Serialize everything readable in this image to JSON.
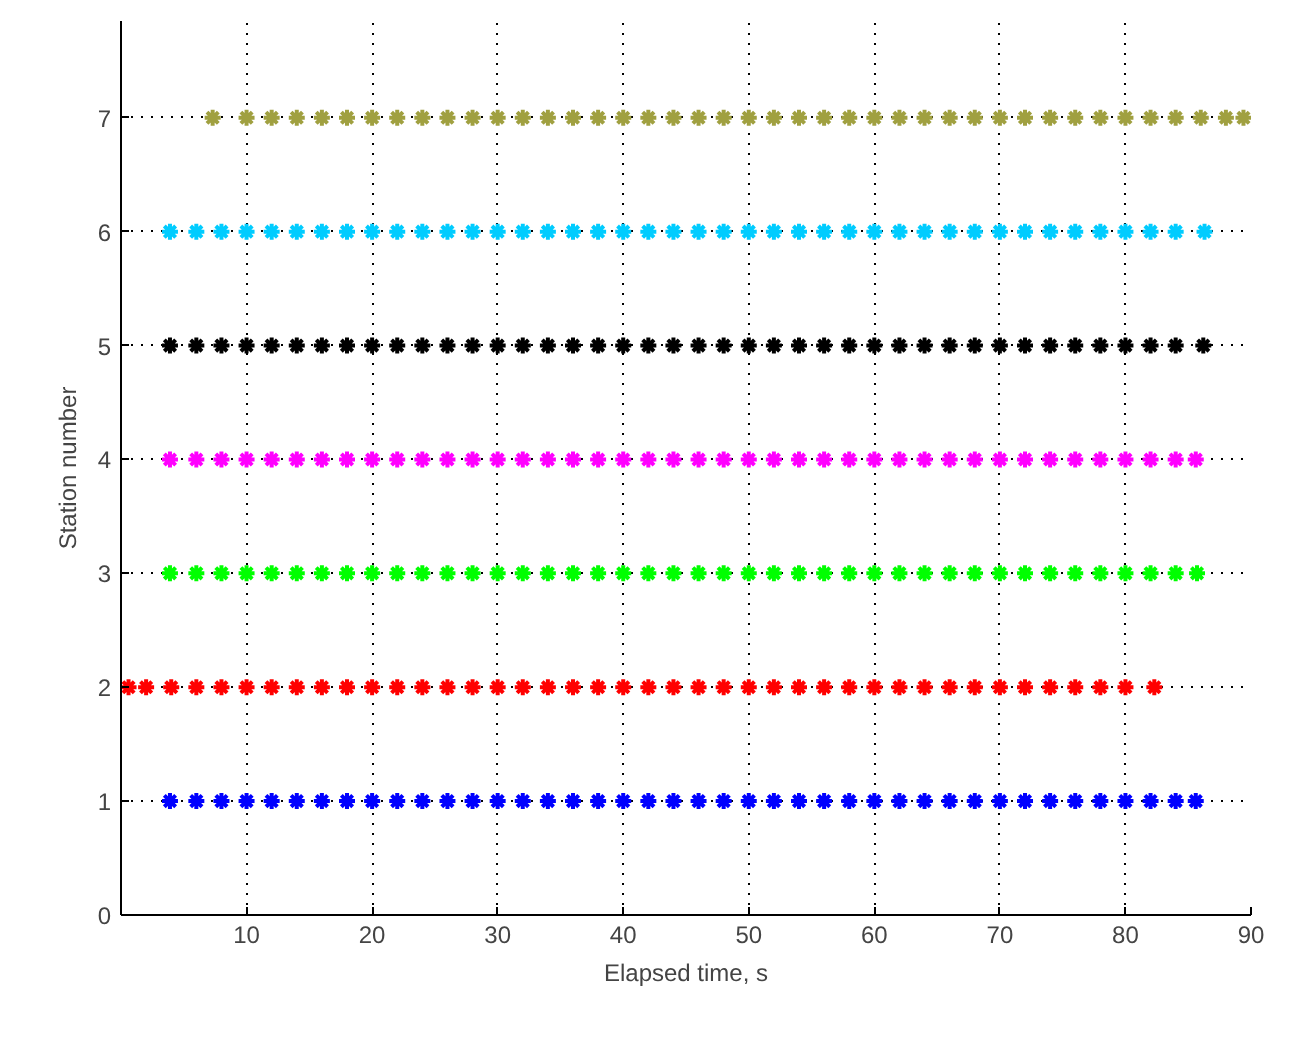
{
  "chart_data": {
    "type": "scatter",
    "xlabel": "Elapsed time, s",
    "ylabel": "Station number",
    "xlim": [
      0,
      90
    ],
    "ylim": [
      0,
      7.85
    ],
    "xticks": [
      10,
      20,
      30,
      40,
      50,
      60,
      70,
      80,
      90
    ],
    "yticks": [
      0,
      1,
      2,
      3,
      4,
      5,
      6,
      7
    ],
    "grid": true,
    "marker": "cross",
    "series": [
      {
        "color": "#0000ff",
        "x": [
          3.9,
          6,
          8,
          10,
          12,
          14,
          16,
          18,
          20,
          22,
          24,
          26,
          28,
          30,
          32,
          34,
          36,
          38,
          40,
          42,
          44,
          46,
          48,
          50,
          52,
          54,
          56,
          58,
          60,
          62,
          64,
          66,
          68,
          70,
          72,
          74,
          76,
          78,
          80,
          82,
          84,
          85.6
        ],
        "values": [
          1,
          1,
          1,
          1,
          1,
          1,
          1,
          1,
          1,
          1,
          1,
          1,
          1,
          1,
          1,
          1,
          1,
          1,
          1,
          1,
          1,
          1,
          1,
          1,
          1,
          1,
          1,
          1,
          1,
          1,
          1,
          1,
          1,
          1,
          1,
          1,
          1,
          1,
          1,
          1,
          1,
          1
        ]
      },
      {
        "color": "#ff0000",
        "x": [
          0.6,
          2,
          4,
          6,
          8,
          10,
          12,
          14,
          16,
          18,
          20,
          22,
          24,
          26,
          28,
          30,
          32,
          34,
          36,
          38,
          40,
          42,
          44,
          46,
          48,
          50,
          52,
          54,
          56,
          58,
          60,
          62,
          64,
          66,
          68,
          70,
          72,
          74,
          76,
          78,
          80,
          82.3
        ],
        "values": [
          2,
          2,
          2,
          2,
          2,
          2,
          2,
          2,
          2,
          2,
          2,
          2,
          2,
          2,
          2,
          2,
          2,
          2,
          2,
          2,
          2,
          2,
          2,
          2,
          2,
          2,
          2,
          2,
          2,
          2,
          2,
          2,
          2,
          2,
          2,
          2,
          2,
          2,
          2,
          2,
          2,
          2
        ]
      },
      {
        "color": "#00ff00",
        "x": [
          3.9,
          6,
          8,
          10,
          12,
          14,
          16,
          18,
          20,
          22,
          24,
          26,
          28,
          30,
          32,
          34,
          36,
          38,
          40,
          42,
          44,
          46,
          48,
          50,
          52,
          54,
          56,
          58,
          60,
          62,
          64,
          66,
          68,
          70,
          72,
          74,
          76,
          78,
          80,
          82,
          84,
          85.7
        ],
        "values": [
          3,
          3,
          3,
          3,
          3,
          3,
          3,
          3,
          3,
          3,
          3,
          3,
          3,
          3,
          3,
          3,
          3,
          3,
          3,
          3,
          3,
          3,
          3,
          3,
          3,
          3,
          3,
          3,
          3,
          3,
          3,
          3,
          3,
          3,
          3,
          3,
          3,
          3,
          3,
          3,
          3,
          3
        ]
      },
      {
        "color": "#ff00ff",
        "x": [
          3.9,
          6,
          8,
          10,
          12,
          14,
          16,
          18,
          20,
          22,
          24,
          26,
          28,
          30,
          32,
          34,
          36,
          38,
          40,
          42,
          44,
          46,
          48,
          50,
          52,
          54,
          56,
          58,
          60,
          62,
          64,
          66,
          68,
          70,
          72,
          74,
          76,
          78,
          80,
          82,
          84,
          85.6
        ],
        "values": [
          4,
          4,
          4,
          4,
          4,
          4,
          4,
          4,
          4,
          4,
          4,
          4,
          4,
          4,
          4,
          4,
          4,
          4,
          4,
          4,
          4,
          4,
          4,
          4,
          4,
          4,
          4,
          4,
          4,
          4,
          4,
          4,
          4,
          4,
          4,
          4,
          4,
          4,
          4,
          4,
          4,
          4
        ]
      },
      {
        "color": "#000000",
        "x": [
          3.9,
          6,
          8,
          10,
          12,
          14,
          16,
          18,
          20,
          22,
          24,
          26,
          28,
          30,
          32,
          34,
          36,
          38,
          40,
          42,
          44,
          46,
          48,
          50,
          52,
          54,
          56,
          58,
          60,
          62,
          64,
          66,
          68,
          70,
          72,
          74,
          76,
          78,
          80,
          82,
          84,
          86.2
        ],
        "values": [
          5,
          5,
          5,
          5,
          5,
          5,
          5,
          5,
          5,
          5,
          5,
          5,
          5,
          5,
          5,
          5,
          5,
          5,
          5,
          5,
          5,
          5,
          5,
          5,
          5,
          5,
          5,
          5,
          5,
          5,
          5,
          5,
          5,
          5,
          5,
          5,
          5,
          5,
          5,
          5,
          5,
          5
        ]
      },
      {
        "color": "#00ccff",
        "x": [
          3.9,
          6,
          8,
          10,
          12,
          14,
          16,
          18,
          20,
          22,
          24,
          26,
          28,
          30,
          32,
          34,
          36,
          38,
          40,
          42,
          44,
          46,
          48,
          50,
          52,
          54,
          56,
          58,
          60,
          62,
          64,
          66,
          68,
          70,
          72,
          74,
          76,
          78,
          80,
          82,
          84,
          86.3
        ],
        "values": [
          6,
          6,
          6,
          6,
          6,
          6,
          6,
          6,
          6,
          6,
          6,
          6,
          6,
          6,
          6,
          6,
          6,
          6,
          6,
          6,
          6,
          6,
          6,
          6,
          6,
          6,
          6,
          6,
          6,
          6,
          6,
          6,
          6,
          6,
          6,
          6,
          6,
          6,
          6,
          6,
          6,
          6
        ]
      },
      {
        "color": "#a0a040",
        "x": [
          7.3,
          10,
          12,
          14,
          16,
          18,
          20,
          22,
          24,
          26,
          28,
          30,
          32,
          34,
          36,
          38,
          40,
          42,
          44,
          46,
          48,
          50,
          52,
          54,
          56,
          58,
          60,
          62,
          64,
          66,
          68,
          70,
          72,
          74,
          76,
          78,
          80,
          82,
          84,
          86,
          88,
          89.4
        ],
        "values": [
          7,
          7,
          7,
          7,
          7,
          7,
          7,
          7,
          7,
          7,
          7,
          7,
          7,
          7,
          7,
          7,
          7,
          7,
          7,
          7,
          7,
          7,
          7,
          7,
          7,
          7,
          7,
          7,
          7,
          7,
          7,
          7,
          7,
          7,
          7,
          7,
          7,
          7,
          7,
          7,
          7,
          7
        ]
      }
    ]
  }
}
